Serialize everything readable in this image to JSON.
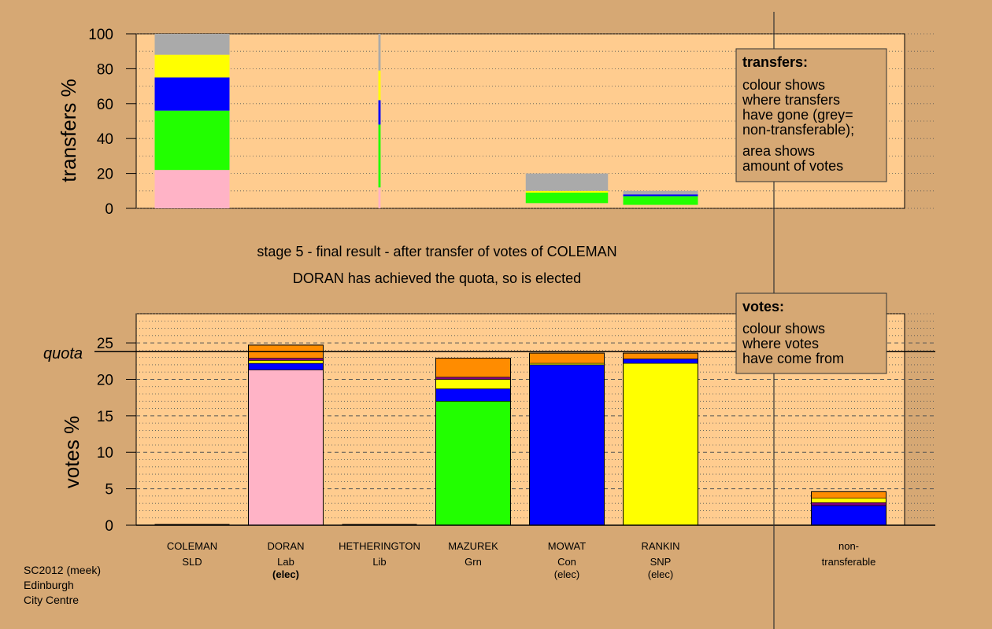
{
  "stage": {
    "line1": "stage 5 - final result - after transfer of votes of COLEMAN",
    "line2": "DORAN has achieved the quota, so is elected"
  },
  "credit": [
    "SC2012 (meek)",
    "Edinburgh",
    "City Centre"
  ],
  "legend_transfers": {
    "title": "transfers:",
    "lines": [
      "colour shows",
      "where transfers",
      "have gone (grey=",
      "non-transferable);",
      "area shows",
      "amount of votes"
    ]
  },
  "legend_votes": {
    "title": "votes:",
    "lines": [
      "colour shows",
      "where votes",
      "have come from"
    ]
  },
  "colors": {
    "background": "#d6a874",
    "plot_bg": "#ffcc8f",
    "Lab": "#ffb3c6",
    "Grn": "#22ff00",
    "Con": "#0000ff",
    "SNP": "#ffff00",
    "SLD": "#ff8c00",
    "Lib": "#ff8c00",
    "purple": "#800080",
    "nontransferable": "#aaaaaa"
  },
  "chart_data": [
    {
      "type": "bar",
      "id": "transfers",
      "ylabel": "transfers %",
      "ylim": [
        0,
        100
      ],
      "yticks": [
        0,
        20,
        40,
        60,
        80,
        100
      ],
      "grid": true,
      "bars": [
        {
          "slot": 0,
          "width": 1.0,
          "segments": [
            {
              "color": "#ffb3c6",
              "from": 0,
              "to": 22
            },
            {
              "color": "#22ff00",
              "from": 22,
              "to": 56
            },
            {
              "color": "#0000ff",
              "from": 56,
              "to": 75
            },
            {
              "color": "#ffff00",
              "from": 75,
              "to": 88
            },
            {
              "color": "#aaaaaa",
              "from": 88,
              "to": 100
            }
          ]
        },
        {
          "slot": 2,
          "width": 0.03,
          "segments": [
            {
              "color": "#ffb3c6",
              "from": 0,
              "to": 12
            },
            {
              "color": "#22ff00",
              "from": 12,
              "to": 48
            },
            {
              "color": "#0000ff",
              "from": 48,
              "to": 62
            },
            {
              "color": "#ffff00",
              "from": 62,
              "to": 79
            },
            {
              "color": "#aaaaaa",
              "from": 79,
              "to": 100
            }
          ]
        },
        {
          "slot": 4,
          "width": 1.1,
          "segments": [
            {
              "color": "#22ff00",
              "from": 3,
              "to": 9
            },
            {
              "color": "#ffff00",
              "from": 9,
              "to": 10
            },
            {
              "color": "#aaaaaa",
              "from": 10,
              "to": 20
            }
          ]
        },
        {
          "slot": 5,
          "width": 1.0,
          "segments": [
            {
              "color": "#22ff00",
              "from": 2,
              "to": 7
            },
            {
              "color": "#0000ff",
              "from": 7,
              "to": 8
            },
            {
              "color": "#aaaaaa",
              "from": 8,
              "to": 10
            }
          ]
        }
      ]
    },
    {
      "type": "bar",
      "id": "votes",
      "ylabel": "votes %",
      "ylim": [
        0,
        29
      ],
      "yticks": [
        0,
        5,
        10,
        15,
        20,
        25
      ],
      "quota": 23.8,
      "quota_label": "quota",
      "grid": true,
      "candidates": [
        {
          "name": "COLEMAN",
          "party": "SLD",
          "status": "",
          "segments": []
        },
        {
          "name": "DORAN",
          "party": "Lab",
          "status": "(elec)",
          "segments": [
            {
              "color": "#ffb3c6",
              "value": 21.3
            },
            {
              "color": "#0000ff",
              "value": 0.9
            },
            {
              "color": "#ffff00",
              "value": 0.4
            },
            {
              "color": "#800080",
              "value": 0.3
            },
            {
              "color": "#ff8c00",
              "value": 1.8
            }
          ]
        },
        {
          "name": "HETHERINGTON",
          "party": "Lib",
          "status": "",
          "segments": []
        },
        {
          "name": "MAZUREK",
          "party": "Grn",
          "status": "",
          "segments": [
            {
              "color": "#22ff00",
              "value": 17.0
            },
            {
              "color": "#0000ff",
              "value": 1.7
            },
            {
              "color": "#ffff00",
              "value": 1.3
            },
            {
              "color": "#800080",
              "value": 0.3
            },
            {
              "color": "#ff8c00",
              "value": 2.6
            }
          ]
        },
        {
          "name": "MOWAT",
          "party": "Con",
          "status": "(elec)",
          "segments": [
            {
              "color": "#0000ff",
              "value": 22.0
            },
            {
              "color": "#ffff00",
              "value": 0.2
            },
            {
              "color": "#ff8c00",
              "value": 1.4
            }
          ]
        },
        {
          "name": "RANKIN",
          "party": "SNP",
          "status": "(elec)",
          "segments": [
            {
              "color": "#ffff00",
              "value": 22.2
            },
            {
              "color": "#0000ff",
              "value": 0.6
            },
            {
              "color": "#ff8c00",
              "value": 0.8
            }
          ]
        }
      ],
      "nontransferable": {
        "label": [
          "non-",
          "transferable"
        ],
        "segments": [
          {
            "color": "#0000ff",
            "value": 2.7
          },
          {
            "color": "#800080",
            "value": 0.4
          },
          {
            "color": "#ffff00",
            "value": 0.6
          },
          {
            "color": "#ff8c00",
            "value": 0.9
          }
        ]
      }
    }
  ]
}
